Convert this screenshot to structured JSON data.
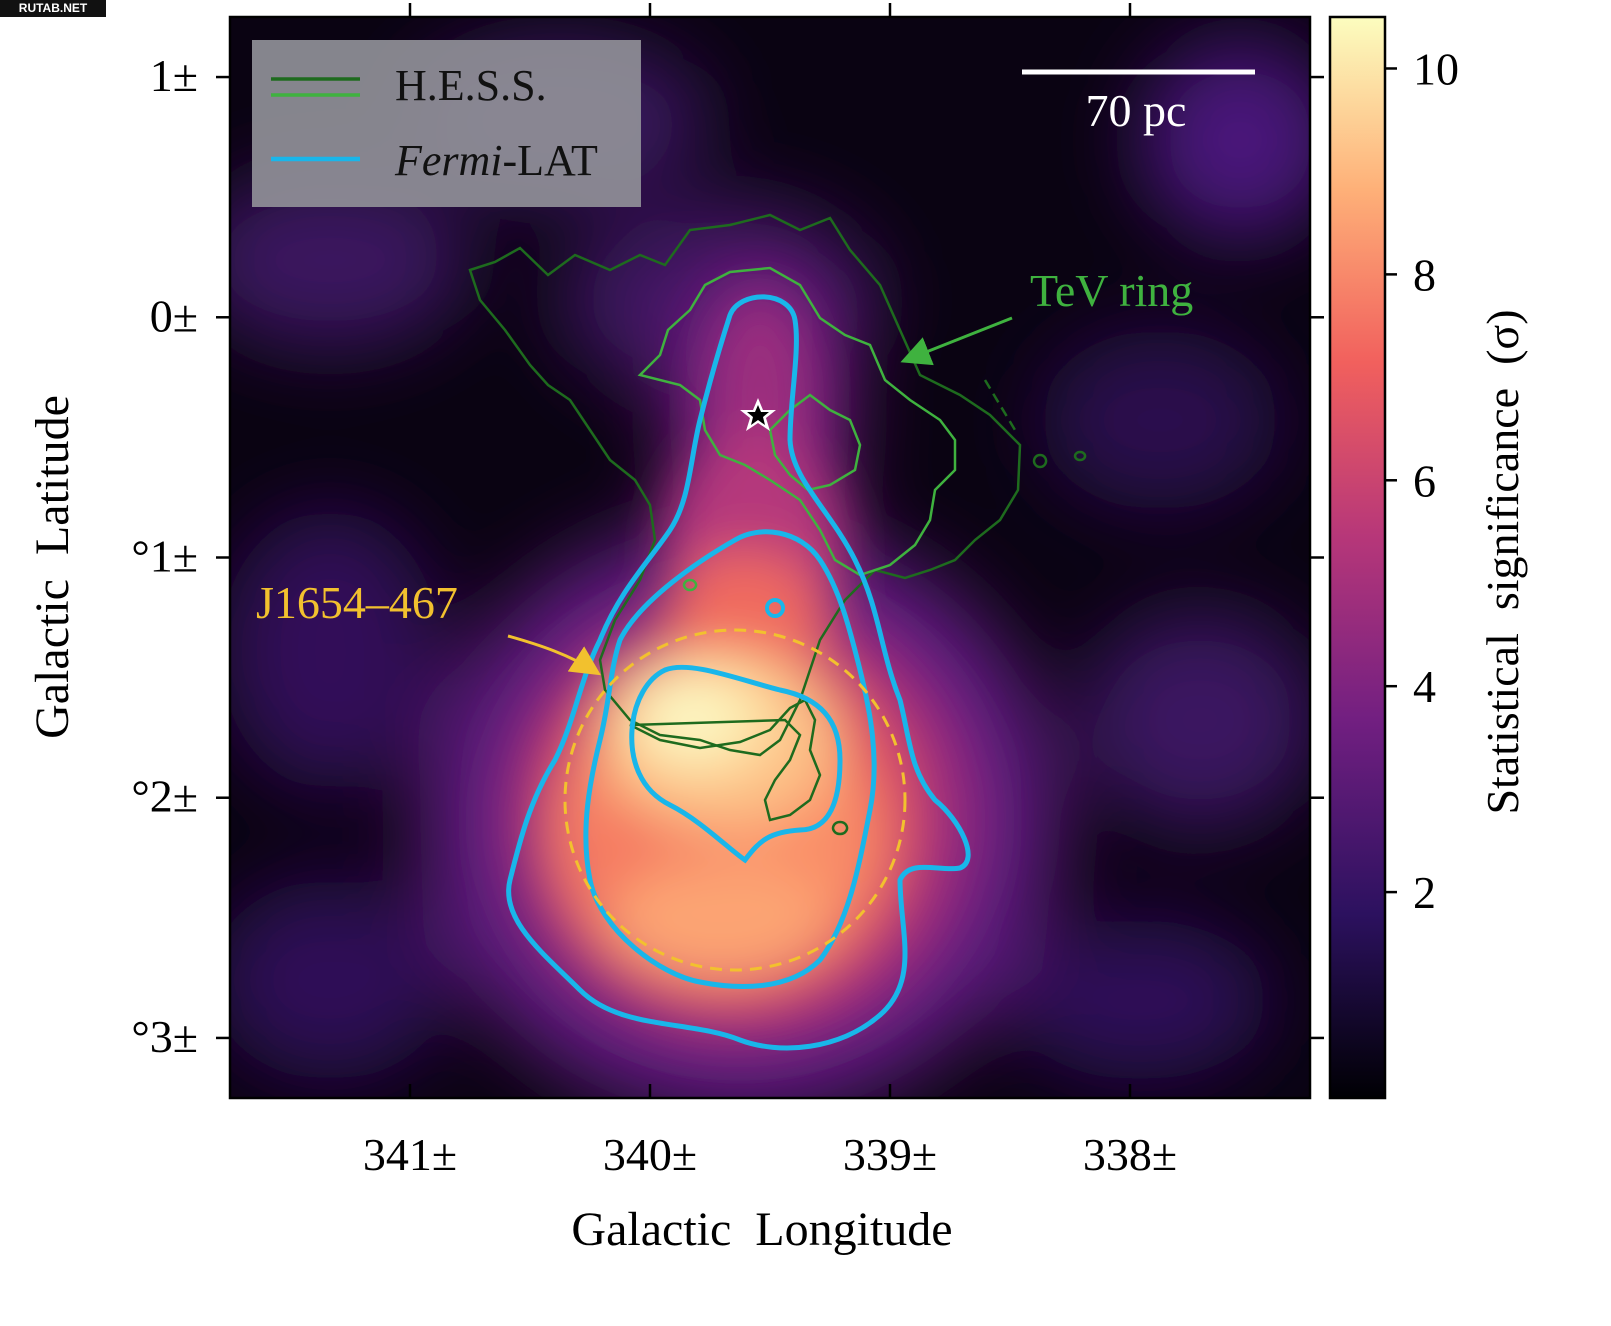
{
  "watermark": "RUTAB.NET",
  "chart_data": {
    "type": "heatmap",
    "title": "",
    "xlabel": "Galactic  Longitude",
    "ylabel": "Galactic  Latitude",
    "xlim": [
      341.75,
      337.25
    ],
    "ylim": [
      -3.25,
      1.25
    ],
    "x_ticks": [
      {
        "value": 341,
        "label": "341±"
      },
      {
        "value": 340,
        "label": "340±"
      },
      {
        "value": 339,
        "label": "339±"
      },
      {
        "value": 338,
        "label": "338±"
      }
    ],
    "y_ticks": [
      {
        "value": 1,
        "label": "1±"
      },
      {
        "value": 0,
        "label": "0±"
      },
      {
        "value": -1,
        "label": "°1±"
      },
      {
        "value": -2,
        "label": "°2±"
      },
      {
        "value": -3,
        "label": "°3±"
      }
    ],
    "colorbar": {
      "label": "Statistical  significance  (σ)",
      "range": [
        0,
        10.5
      ],
      "ticks": [
        {
          "value": 10,
          "label": "10"
        },
        {
          "value": 8,
          "label": "8"
        },
        {
          "value": 6,
          "label": "6"
        },
        {
          "value": 4,
          "label": "4"
        },
        {
          "value": 2,
          "label": "2"
        }
      ],
      "colormap": [
        "#000004",
        "#2c115f",
        "#721f81",
        "#b73779",
        "#f1605d",
        "#feb078",
        "#fcfdbf"
      ]
    },
    "significance_peaks": [
      {
        "l": 339.8,
        "b": -1.7,
        "sigma": 10.3
      },
      {
        "l": 339.6,
        "b": -1.1,
        "sigma": 7.5
      },
      {
        "l": 339.9,
        "b": -2.2,
        "sigma": 8.5
      },
      {
        "l": 339.6,
        "b": -2.5,
        "sigma": 8.0
      },
      {
        "l": 339.5,
        "b": -0.5,
        "sigma": 5.5
      },
      {
        "l": 339.5,
        "b": -0.1,
        "sigma": 4.5
      }
    ],
    "legend": [
      {
        "label": "H.E.S.S.",
        "colors": [
          "#1e6b1e",
          "#3fb23f"
        ]
      },
      {
        "label": "Fermi-LAT",
        "label_italic": "Fermi",
        "label_rest": "-LAT",
        "colors": [
          "#19b6ea"
        ]
      }
    ],
    "legend_position": "top-left",
    "scale_bar": {
      "label": "70 pc",
      "length_deg": 0.96
    },
    "annotations": [
      {
        "text": "TeV ring",
        "color": "#3fb23f",
        "target": [
          339.05,
          -0.18
        ]
      },
      {
        "text": "J1654–467",
        "color": "#f2c12e",
        "target": [
          340.2,
          -1.48
        ]
      }
    ],
    "source_circle": {
      "l": 339.7,
      "b": -1.99,
      "radius_deg": 0.71,
      "color": "#f2c12e"
    },
    "pulsar_marker": {
      "l": 339.55,
      "b": -0.4,
      "symbol": "star"
    },
    "small_circle": {
      "l": 339.5,
      "b": -1.2
    },
    "colors": {
      "hess_dark": "#1e6b1e",
      "hess_light": "#3fb23f",
      "fermi": "#19b6ea",
      "yellow": "#f2c12e"
    }
  }
}
